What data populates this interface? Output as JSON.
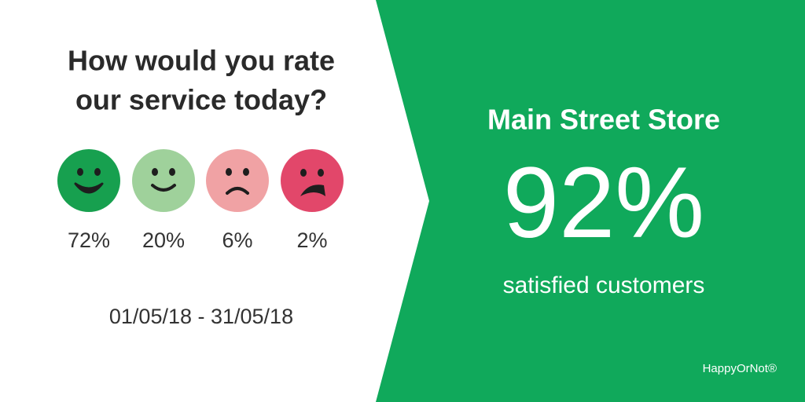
{
  "question": {
    "line1": "How would you rate",
    "line2": "our service today?"
  },
  "ratings": [
    "72%",
    "20%",
    "6%",
    "2%"
  ],
  "date_range": "01/05/18 - 31/05/18",
  "store": "Main Street Store",
  "score": "92%",
  "score_caption": "satisfied customers",
  "brand": "HappyOrNot®"
}
